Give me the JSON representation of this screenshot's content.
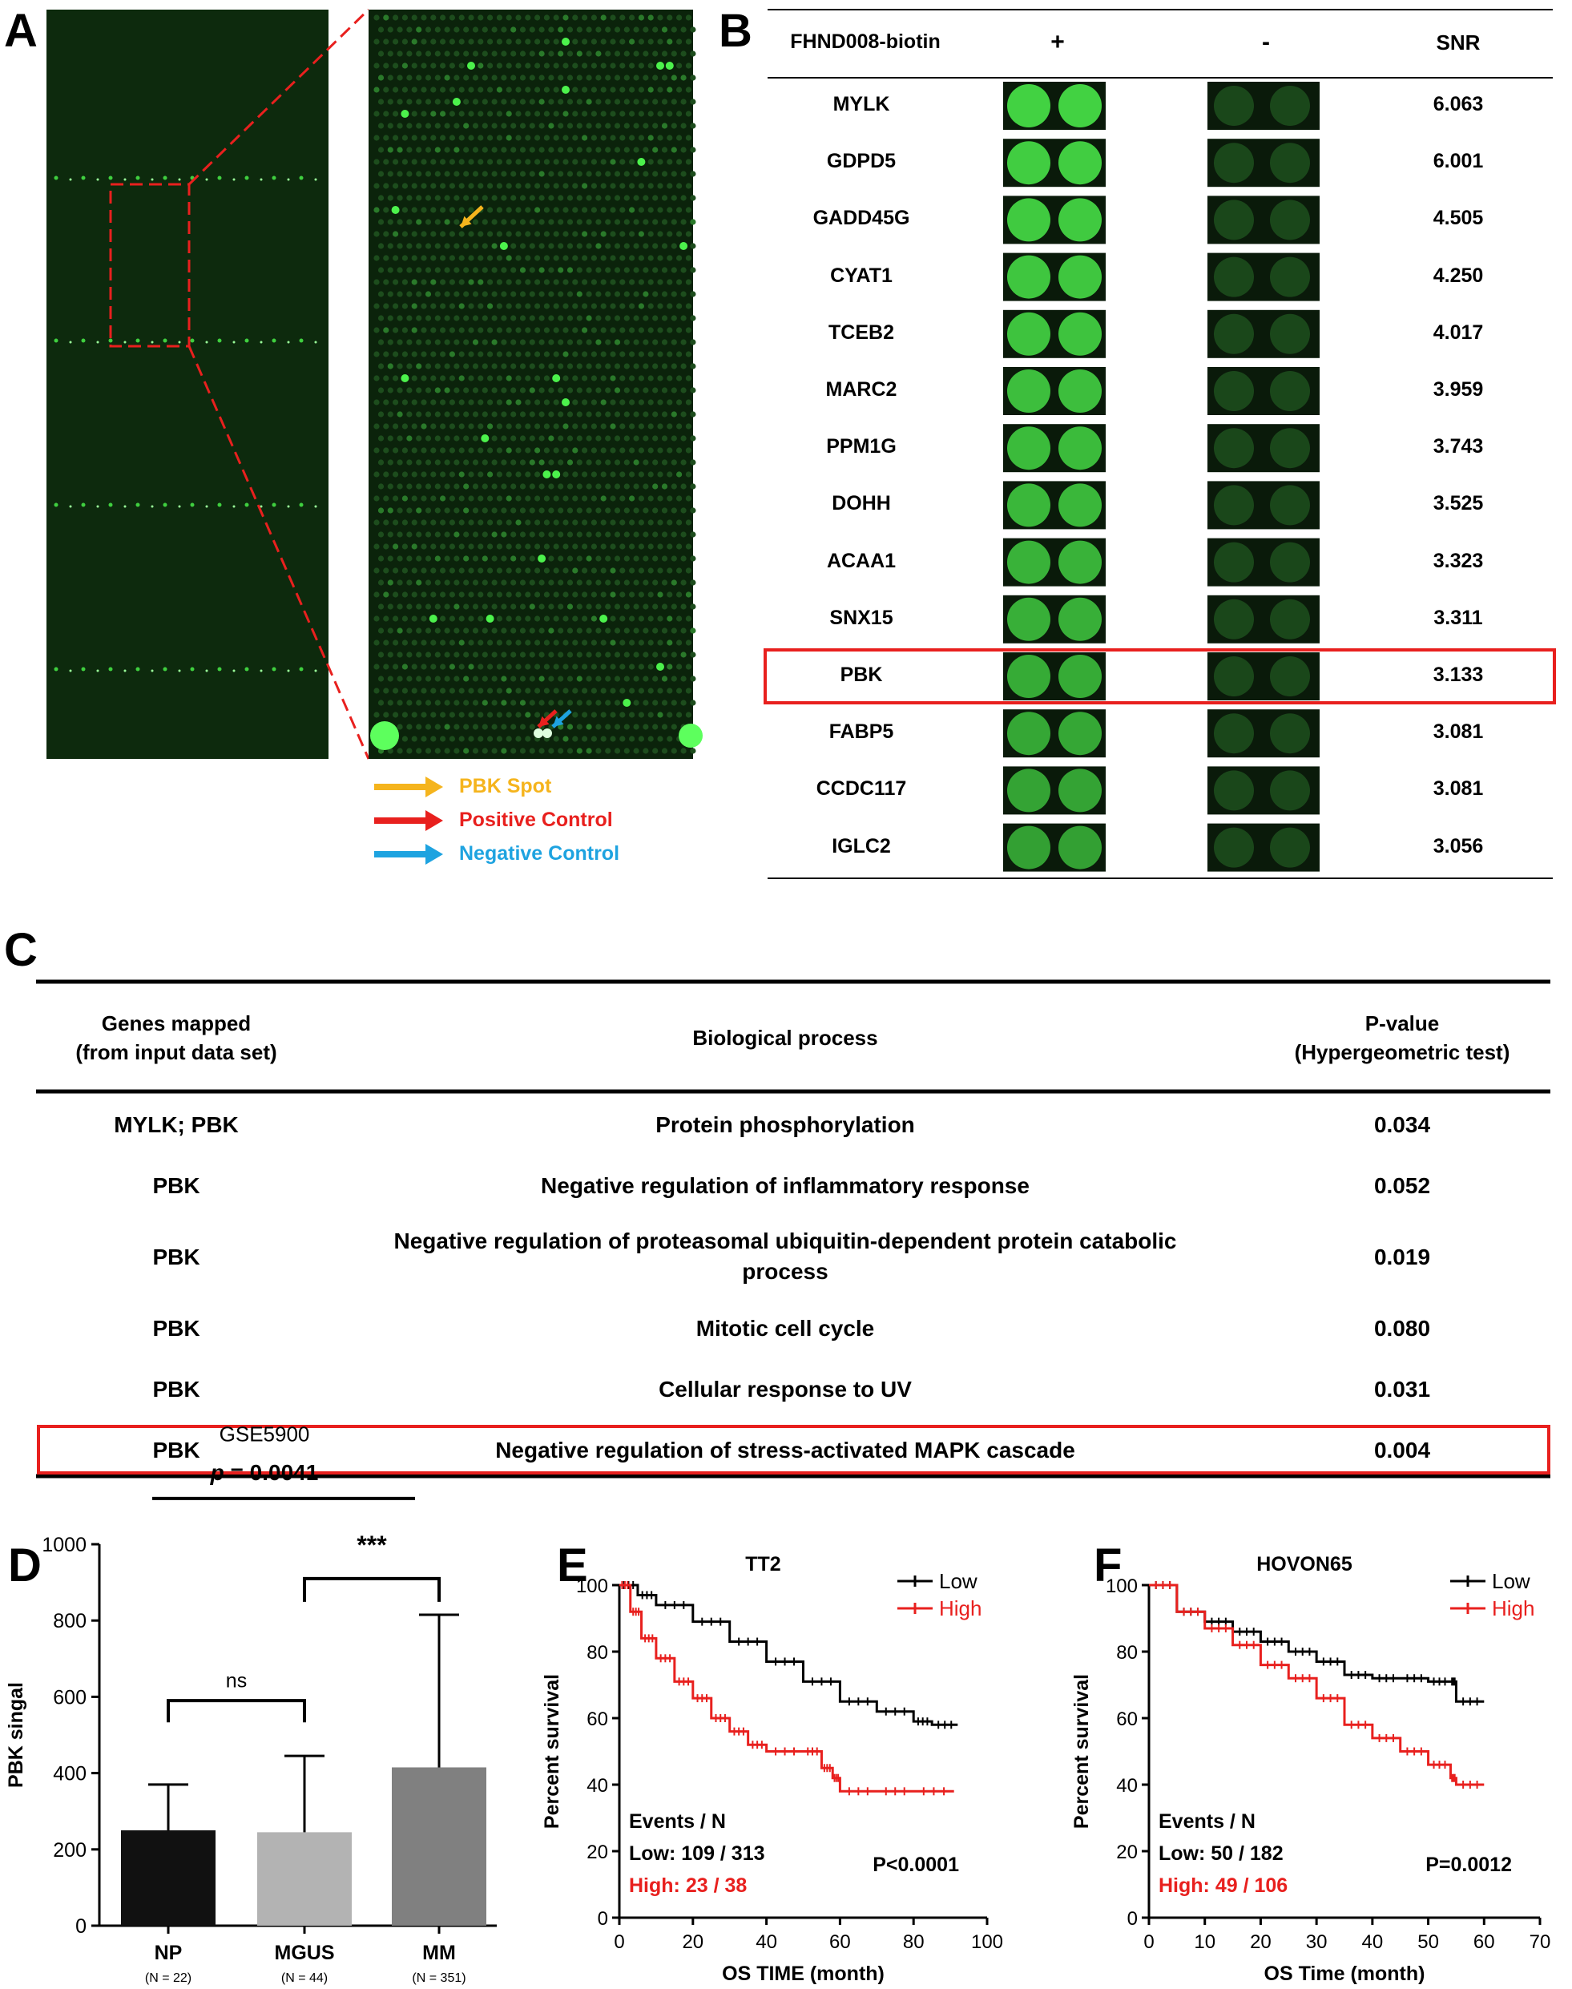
{
  "panel_labels": {
    "a": "A",
    "b": "B",
    "c": "C",
    "d": "D",
    "e": "E",
    "f": "F"
  },
  "panel_a": {
    "legend": [
      {
        "label": "PBK Spot",
        "color": "#f5b41d"
      },
      {
        "label": "Positive Control",
        "color": "#e8201e"
      },
      {
        "label": "Negative Control",
        "color": "#1ea3e0"
      }
    ]
  },
  "panel_b": {
    "headers": {
      "probe": "FHND008-biotin",
      "plus": "+",
      "minus": "-",
      "snr": "SNR"
    },
    "rows": [
      {
        "gene": "MYLK",
        "snr": "6.063"
      },
      {
        "gene": "GDPD5",
        "snr": "6.001"
      },
      {
        "gene": "GADD45G",
        "snr": "4.505"
      },
      {
        "gene": "CYAT1",
        "snr": "4.250"
      },
      {
        "gene": "TCEB2",
        "snr": "4.017"
      },
      {
        "gene": "MARC2",
        "snr": "3.959"
      },
      {
        "gene": "PPM1G",
        "snr": "3.743"
      },
      {
        "gene": "DOHH",
        "snr": "3.525"
      },
      {
        "gene": "ACAA1",
        "snr": "3.323"
      },
      {
        "gene": "SNX15",
        "snr": "3.311"
      },
      {
        "gene": "PBK",
        "snr": "3.133",
        "highlight": true
      },
      {
        "gene": "FABP5",
        "snr": "3.081"
      },
      {
        "gene": "CCDC117",
        "snr": "3.081"
      },
      {
        "gene": "IGLC2",
        "snr": "3.056"
      }
    ]
  },
  "panel_c": {
    "headers": {
      "genes_l1": "Genes mapped",
      "genes_l2": "(from input data set)",
      "process": "Biological process",
      "p_l1": "P-value",
      "p_l2": "(Hypergeometric test)"
    },
    "rows": [
      {
        "genes": "MYLK; PBK",
        "process": "Protein phosphorylation",
        "p": "0.034"
      },
      {
        "genes": "PBK",
        "process": "Negative regulation of inflammatory response",
        "p": "0.052"
      },
      {
        "genes": "PBK",
        "process_l1": "Negative regulation of proteasomal ubiquitin-dependent protein catabolic",
        "process_l2": "process",
        "p": "0.019"
      },
      {
        "genes": "PBK",
        "process": "Mitotic cell cycle",
        "p": "0.080"
      },
      {
        "genes": "PBK",
        "process": "Cellular response to UV",
        "p": "0.031"
      },
      {
        "genes": "PBK",
        "process": "Negative regulation of stress-activated MAPK cascade",
        "p": "0.004",
        "highlight": true
      }
    ]
  },
  "chart_data": [
    {
      "type": "bar",
      "title": "GSE5900",
      "annotation": "p = 0.0041",
      "annotation_italic": "p",
      "annotation_rest": " = 0.0041",
      "sig_mgus_mm": "***",
      "sig_np_mgus": "ns",
      "ylabel": "PBK singal",
      "ylim": [
        0,
        1000
      ],
      "yticks": [
        "0",
        "200",
        "400",
        "600",
        "800",
        "1000"
      ],
      "categories": [
        "NP",
        "MGUS",
        "MM"
      ],
      "ns": [
        "(N = 22)",
        "(N = 44)",
        "(N = 351)"
      ],
      "values": [
        250,
        245,
        415
      ],
      "errors": [
        120,
        200,
        400
      ],
      "colors": [
        "#111111",
        "#b3b3b3",
        "#808080"
      ]
    },
    {
      "type": "line",
      "title": "TT2",
      "xlabel": "OS TIME (month)",
      "ylabel": "Percent survival",
      "xlim": [
        0,
        100
      ],
      "ylim": [
        0,
        100
      ],
      "xticks": [
        "0",
        "20",
        "40",
        "60",
        "80",
        "100"
      ],
      "yticks": [
        "0",
        "20",
        "40",
        "60",
        "80",
        "100"
      ],
      "legend": [
        "Low",
        "High"
      ],
      "events_header": "Events / N",
      "low_text": "Low: 109 / 313",
      "high_text": "High: 23 / 38",
      "pvalue": "P<0.0001",
      "series": [
        {
          "name": "Low",
          "color": "#000000",
          "x": [
            0,
            5,
            10,
            20,
            30,
            40,
            50,
            60,
            70,
            80,
            85,
            92
          ],
          "y": [
            100,
            97,
            94,
            89,
            83,
            77,
            71,
            65,
            62,
            59,
            58,
            58
          ]
        },
        {
          "name": "High",
          "color": "#e8201e",
          "x": [
            0,
            3,
            6,
            10,
            15,
            20,
            25,
            30,
            35,
            40,
            50,
            55,
            58,
            60,
            70,
            80,
            91
          ],
          "y": [
            100,
            92,
            84,
            78,
            71,
            66,
            60,
            56,
            52,
            50,
            50,
            45,
            42,
            38,
            38,
            38,
            38
          ]
        }
      ]
    },
    {
      "type": "line",
      "title": "HOVON65",
      "xlabel": "OS Time (month)",
      "ylabel": "Percent survival",
      "xlim": [
        0,
        70
      ],
      "ylim": [
        0,
        100
      ],
      "xticks": [
        "0",
        "10",
        "20",
        "30",
        "40",
        "50",
        "60",
        "70"
      ],
      "yticks": [
        "0",
        "20",
        "40",
        "60",
        "80",
        "100"
      ],
      "legend": [
        "Low",
        "High"
      ],
      "events_header": "Events / N",
      "low_text": "Low: 50 / 182",
      "high_text": "High: 49 / 106",
      "pvalue": "P=0.0012",
      "series": [
        {
          "name": "Low",
          "color": "#000000",
          "x": [
            0,
            5,
            10,
            15,
            20,
            25,
            30,
            35,
            40,
            45,
            50,
            54,
            55,
            60
          ],
          "y": [
            100,
            92,
            89,
            86,
            83,
            80,
            77,
            73,
            72,
            72,
            71,
            71,
            65,
            65
          ]
        },
        {
          "name": "High",
          "color": "#e8201e",
          "x": [
            0,
            5,
            10,
            15,
            20,
            25,
            30,
            35,
            40,
            45,
            50,
            54,
            55,
            60
          ],
          "y": [
            100,
            92,
            87,
            82,
            76,
            72,
            66,
            58,
            54,
            50,
            46,
            42,
            40,
            40
          ]
        }
      ]
    }
  ]
}
